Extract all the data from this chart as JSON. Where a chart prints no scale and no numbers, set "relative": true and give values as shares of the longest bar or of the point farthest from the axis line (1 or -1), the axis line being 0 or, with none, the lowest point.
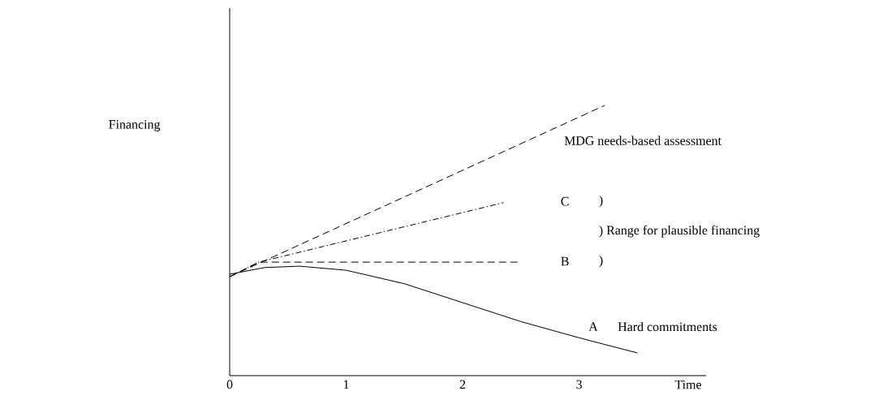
{
  "chart_data": {
    "type": "line",
    "xlabel": "Time",
    "relative": true,
    "xlim": [
      0,
      4.09
    ],
    "xticks": [
      0,
      1,
      2,
      3
    ],
    "grid": false,
    "marker": "none",
    "series": [
      {
        "name": "MDG needs-based assessment",
        "color": "#000000",
        "line_style": "dashed",
        "x": [
          0,
          3.22
        ],
        "values": [
          0.366,
          1
        ]
      },
      {
        "color": "#000000",
        "line_style": "dashdotted",
        "x": [
          0,
          0.25,
          2.35
        ],
        "values": [
          0.366,
          0.42,
          0.64
        ]
      },
      {
        "color": "#000000",
        "line_style": "dashed",
        "x": [
          0,
          0.25,
          2.49
        ],
        "values": [
          0.366,
          0.42,
          0.42
        ]
      },
      {
        "name": "A",
        "color": "#000000",
        "line_style": "solid",
        "x": [
          0,
          0.3,
          0.6,
          1.0,
          1.5,
          2.0,
          2.5,
          3.0,
          3.5
        ],
        "values": [
          0.375,
          0.4,
          0.405,
          0.39,
          0.34,
          0.27,
          0.2,
          0.14,
          0.084
        ]
      }
    ],
    "annotations": [
      "Financing",
      "C",
      ")",
      ") Range for plausible financing",
      "B",
      ")",
      "Hard commitments"
    ]
  }
}
